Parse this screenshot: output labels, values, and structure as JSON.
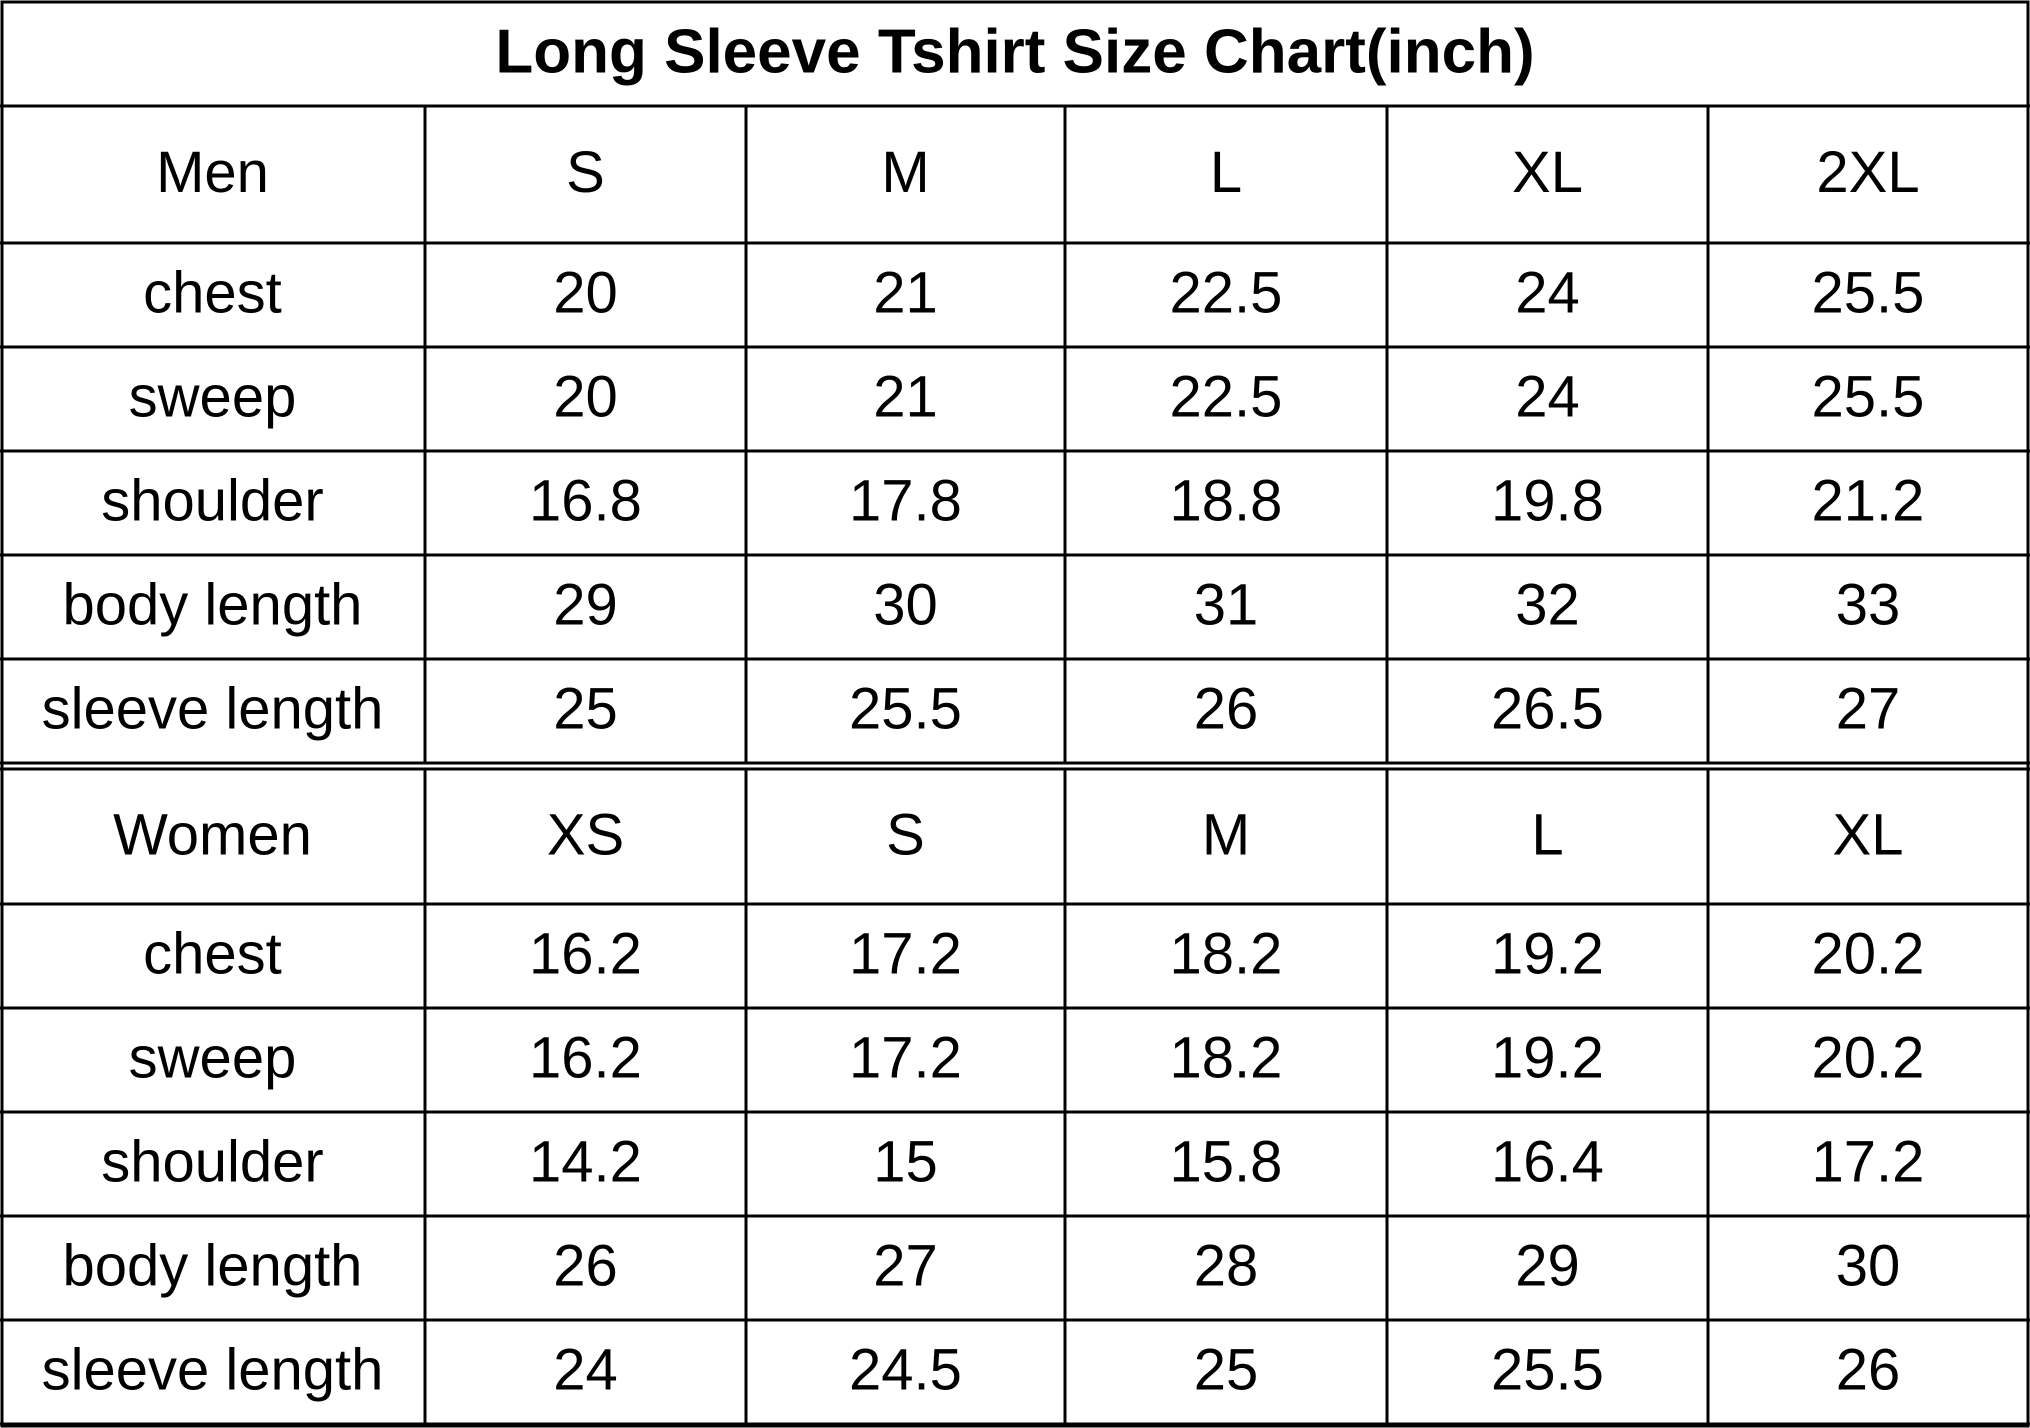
{
  "title": "Long Sleeve Tshirt Size Chart(inch)",
  "sections": [
    {
      "header": [
        "Men",
        "S",
        "M",
        "L",
        "XL",
        "2XL"
      ],
      "rows": [
        [
          "chest",
          "20",
          "21",
          "22.5",
          "24",
          "25.5"
        ],
        [
          "sweep",
          "20",
          "21",
          "22.5",
          "24",
          "25.5"
        ],
        [
          "shoulder",
          "16.8",
          "17.8",
          "18.8",
          "19.8",
          "21.2"
        ],
        [
          "body length",
          "29",
          "30",
          "31",
          "32",
          "33"
        ],
        [
          "sleeve length",
          "25",
          "25.5",
          "26",
          "26.5",
          "27"
        ]
      ]
    },
    {
      "header": [
        "Women",
        "XS",
        "S",
        "M",
        "L",
        "XL"
      ],
      "rows": [
        [
          "chest",
          "16.2",
          "17.2",
          "18.2",
          "19.2",
          "20.2"
        ],
        [
          "sweep",
          "16.2",
          "17.2",
          "18.2",
          "19.2",
          "20.2"
        ],
        [
          "shoulder",
          "14.2",
          "15",
          "15.8",
          "16.4",
          "17.2"
        ],
        [
          "body length",
          "26",
          "27",
          "28",
          "29",
          "30"
        ],
        [
          "sleeve length",
          "24",
          "24.5",
          "25",
          "25.5",
          "26"
        ]
      ]
    }
  ]
}
